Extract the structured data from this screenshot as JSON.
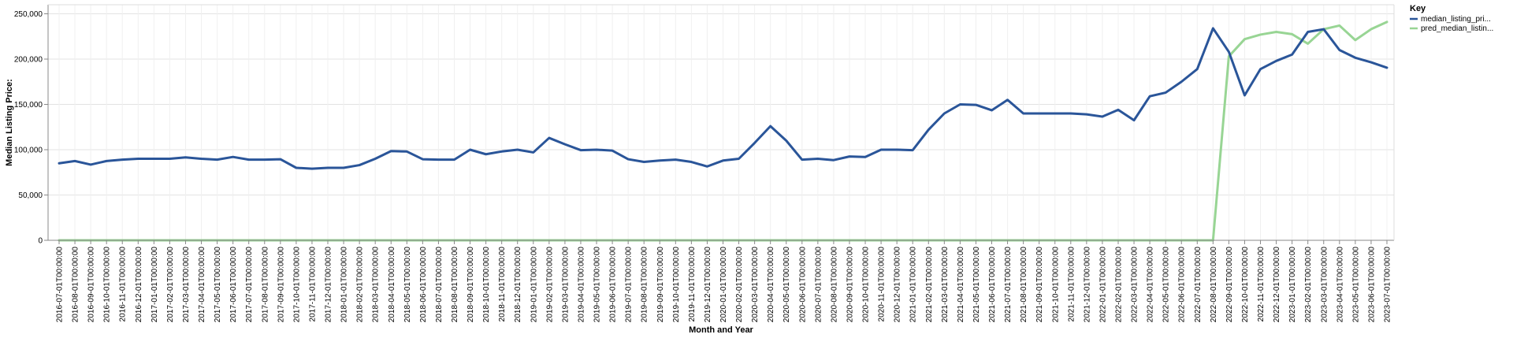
{
  "chart_data": {
    "type": "line",
    "xlabel": "Month and Year",
    "ylabel": "Median Listing Price:",
    "ylim": [
      0,
      260000
    ],
    "yticks": [
      0,
      50000,
      100000,
      150000,
      200000,
      250000
    ],
    "ytick_labels": [
      "0",
      "50,000",
      "100,000",
      "150,000",
      "200,000",
      "250,000"
    ],
    "grid": true,
    "legend": {
      "title": "Key",
      "placement": "top-right"
    },
    "x": [
      "2016-07-01T00:00:00",
      "2016-08-01T00:00:00",
      "2016-09-01T00:00:00",
      "2016-10-01T00:00:00",
      "2016-11-01T00:00:00",
      "2016-12-01T00:00:00",
      "2017-01-01T00:00:00",
      "2017-02-01T00:00:00",
      "2017-03-01T00:00:00",
      "2017-04-01T00:00:00",
      "2017-05-01T00:00:00",
      "2017-06-01T00:00:00",
      "2017-07-01T00:00:00",
      "2017-08-01T00:00:00",
      "2017-09-01T00:00:00",
      "2017-10-01T00:00:00",
      "2017-11-01T00:00:00",
      "2017-12-01T00:00:00",
      "2018-01-01T00:00:00",
      "2018-02-01T00:00:00",
      "2018-03-01T00:00:00",
      "2018-04-01T00:00:00",
      "2018-05-01T00:00:00",
      "2018-06-01T00:00:00",
      "2018-07-01T00:00:00",
      "2018-08-01T00:00:00",
      "2018-09-01T00:00:00",
      "2018-10-01T00:00:00",
      "2018-11-01T00:00:00",
      "2018-12-01T00:00:00",
      "2019-01-01T00:00:00",
      "2019-02-01T00:00:00",
      "2019-03-01T00:00:00",
      "2019-04-01T00:00:00",
      "2019-05-01T00:00:00",
      "2019-06-01T00:00:00",
      "2019-07-01T00:00:00",
      "2019-08-01T00:00:00",
      "2019-09-01T00:00:00",
      "2019-10-01T00:00:00",
      "2019-11-01T00:00:00",
      "2019-12-01T00:00:00",
      "2020-01-01T00:00:00",
      "2020-02-01T00:00:00",
      "2020-03-01T00:00:00",
      "2020-04-01T00:00:00",
      "2020-05-01T00:00:00",
      "2020-06-01T00:00:00",
      "2020-07-01T00:00:00",
      "2020-08-01T00:00:00",
      "2020-09-01T00:00:00",
      "2020-10-01T00:00:00",
      "2020-11-01T00:00:00",
      "2020-12-01T00:00:00",
      "2021-01-01T00:00:00",
      "2021-02-01T00:00:00",
      "2021-03-01T00:00:00",
      "2021-04-01T00:00:00",
      "2021-05-01T00:00:00",
      "2021-06-01T00:00:00",
      "2021-07-01T00:00:00",
      "2021-08-01T00:00:00",
      "2021-09-01T00:00:00",
      "2021-10-01T00:00:00",
      "2021-11-01T00:00:00",
      "2021-12-01T00:00:00",
      "2022-01-01T00:00:00",
      "2022-02-01T00:00:00",
      "2022-03-01T00:00:00",
      "2022-04-01T00:00:00",
      "2022-05-01T00:00:00",
      "2022-06-01T00:00:00",
      "2022-07-01T00:00:00",
      "2022-08-01T00:00:00",
      "2022-09-01T00:00:00",
      "2022-10-01T00:00:00",
      "2022-11-01T00:00:00",
      "2022-12-01T00:00:00",
      "2023-01-01T00:00:00",
      "2023-02-01T00:00:00",
      "2023-03-01T00:00:00",
      "2023-04-01T00:00:00",
      "2023-05-01T00:00:00",
      "2023-06-01T00:00:00",
      "2023-07-01T00:00:00"
    ],
    "series": [
      {
        "name": "median_listing_pri...",
        "color": "#2a5599",
        "values": [
          85000,
          87500,
          83500,
          87500,
          89000,
          90000,
          90000,
          90000,
          91500,
          90000,
          89000,
          92000,
          89000,
          89000,
          89500,
          80000,
          79000,
          80000,
          80000,
          83000,
          90000,
          98500,
          98000,
          89500,
          89000,
          89000,
          100000,
          95000,
          98000,
          100000,
          97000,
          113000,
          106000,
          99500,
          100000,
          99000,
          89500,
          86500,
          88000,
          89000,
          86500,
          81500,
          88000,
          90000,
          107500,
          126000,
          110000,
          89000,
          90000,
          88500,
          92500,
          92000,
          100000,
          100000,
          99500,
          122000,
          140000,
          150000,
          149500,
          143500,
          155000,
          140000,
          140000,
          140000,
          140000,
          139000,
          136500,
          144000,
          132500,
          159000,
          163000,
          175000,
          189000,
          234000,
          208000,
          160000,
          189000,
          198000,
          205000,
          230000,
          233000,
          210000,
          201500,
          196500,
          190500
        ]
      },
      {
        "name": "pred_median_listin...",
        "color": "#98d594",
        "values": [
          0,
          0,
          0,
          0,
          0,
          0,
          0,
          0,
          0,
          0,
          0,
          0,
          0,
          0,
          0,
          0,
          0,
          0,
          0,
          0,
          0,
          0,
          0,
          0,
          0,
          0,
          0,
          0,
          0,
          0,
          0,
          0,
          0,
          0,
          0,
          0,
          0,
          0,
          0,
          0,
          0,
          0,
          0,
          0,
          0,
          0,
          0,
          0,
          0,
          0,
          0,
          0,
          0,
          0,
          0,
          0,
          0,
          0,
          0,
          0,
          0,
          0,
          0,
          0,
          0,
          0,
          0,
          0,
          0,
          0,
          0,
          0,
          0,
          0,
          203000,
          222000,
          227000,
          230000,
          227500,
          217000,
          233000,
          237000,
          221000,
          233000,
          241000
        ]
      }
    ]
  }
}
